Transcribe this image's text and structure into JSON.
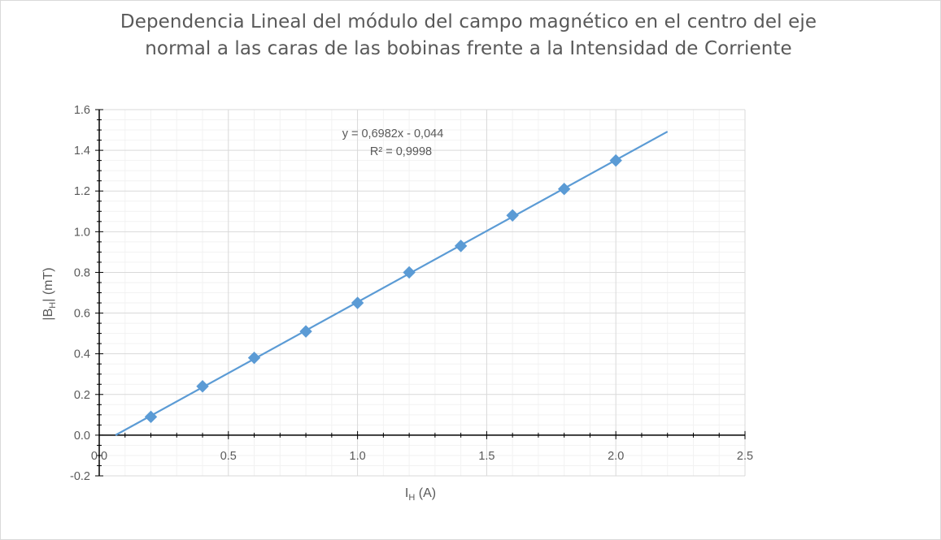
{
  "chart": {
    "title_line1": "Dependencia Lineal del módulo del campo magnético en el centro del eje",
    "title_line2": "normal a las caras de las bobinas frente a la Intensidad de Corriente",
    "equation": "y = 0,6982x - 0,044",
    "r_squared": "R² = 0,9998",
    "x_axis_base": "I",
    "x_axis_sub": "H",
    "x_axis_unit": " (A)",
    "y_axis_pre": "|B",
    "y_axis_sub": "H",
    "y_axis_post": "| (mT)"
  },
  "chart_data": {
    "type": "scatter",
    "title": "Dependencia Lineal del módulo del campo magnético en el centro del eje normal a las caras de las bobinas frente a la Intensidad de Corriente",
    "xlabel": "IH (A)",
    "ylabel": "|BH| (mT)",
    "xlim": [
      0,
      2.5
    ],
    "ylim": [
      -0.2,
      1.6
    ],
    "x_ticks": [
      "0.0",
      "0.5",
      "1.0",
      "1.5",
      "2.0",
      "2.5"
    ],
    "y_ticks": [
      "-0.2",
      "0.0",
      "0.2",
      "0.4",
      "0.6",
      "0.8",
      "1.0",
      "1.2",
      "1.4",
      "1.6"
    ],
    "grid": true,
    "series": [
      {
        "x": [
          0.2,
          0.4,
          0.6,
          0.8,
          1.0,
          1.2,
          1.4,
          1.6,
          1.8,
          2.0
        ],
        "values": [
          0.09,
          0.24,
          0.38,
          0.51,
          0.65,
          0.8,
          0.93,
          1.08,
          1.21,
          1.35
        ],
        "color": "#5b9bd5"
      }
    ],
    "trendline": {
      "type": "linear",
      "slope": 0.6982,
      "intercept": -0.044,
      "x_range": [
        0.063,
        2.2
      ],
      "color": "#5b9bd5"
    }
  }
}
